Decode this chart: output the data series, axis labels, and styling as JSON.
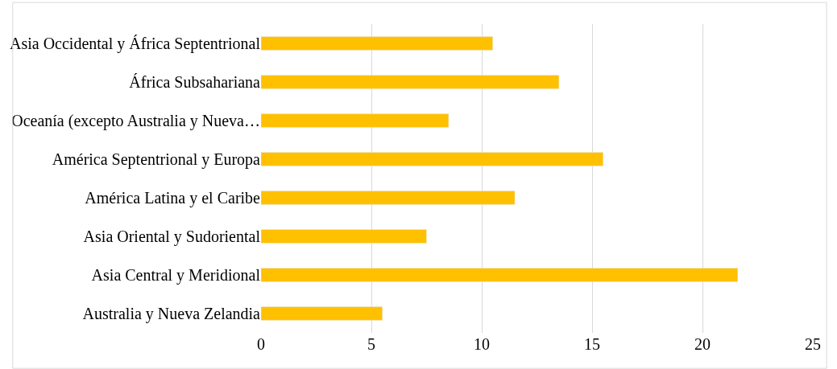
{
  "chart_data": {
    "type": "bar",
    "orientation": "horizontal",
    "categories": [
      "Asia Occidental y África Septentrional",
      "África Subsahariana",
      "Oceanía (excepto Australia y Nueva…",
      "América Septentrional y Europa",
      "América Latina y el Caribe",
      "Asia Oriental y Sudoriental",
      "Asia Central y Meridional",
      "Australia y Nueva Zelandia"
    ],
    "values": [
      10.5,
      13.5,
      8.5,
      15.5,
      11.5,
      7.5,
      21.6,
      5.5
    ],
    "color": "#ffc000",
    "xlim": [
      0,
      25
    ],
    "xticks": [
      0,
      5,
      10,
      15,
      20,
      25
    ],
    "grid": "x"
  }
}
